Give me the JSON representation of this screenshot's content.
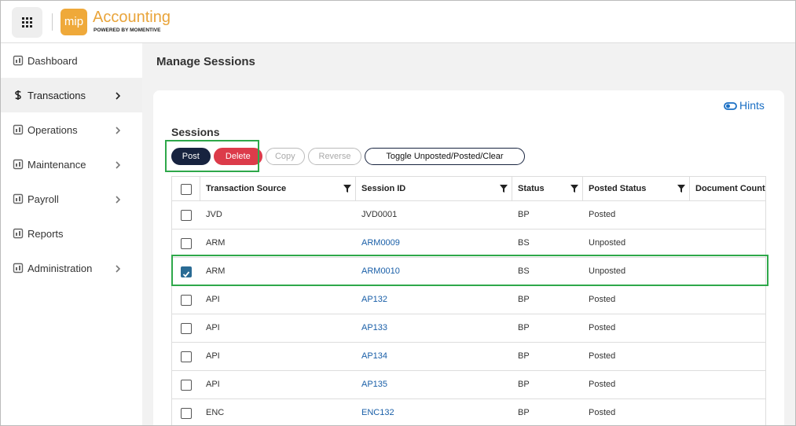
{
  "header": {
    "logo": "mip",
    "product": "Accounting",
    "tagline": "POWERED BY MOMENTIVE"
  },
  "sidebar": {
    "items": [
      {
        "label": "Dashboard",
        "submenu": false,
        "selected": false
      },
      {
        "label": "Transactions",
        "submenu": true,
        "selected": true
      },
      {
        "label": "Operations",
        "submenu": true,
        "selected": false
      },
      {
        "label": "Maintenance",
        "submenu": true,
        "selected": false
      },
      {
        "label": "Payroll",
        "submenu": true,
        "selected": false
      },
      {
        "label": "Reports",
        "submenu": false,
        "selected": false
      },
      {
        "label": "Administration",
        "submenu": true,
        "selected": false
      }
    ]
  },
  "page": {
    "title": "Manage Sessions",
    "hints": "Hints",
    "section": "Sessions",
    "buttons": [
      {
        "label": "Post",
        "style": "dark"
      },
      {
        "label": "Delete",
        "style": "danger"
      },
      {
        "label": "Copy",
        "style": "disabled"
      },
      {
        "label": "Reverse",
        "style": "disabled"
      },
      {
        "label": "Toggle Unposted/Posted/Clear",
        "style": "outline"
      }
    ]
  },
  "table": {
    "columns": [
      "Transaction Source",
      "Session ID",
      "Status",
      "Posted Status",
      "Document Count"
    ],
    "rows": [
      {
        "source": "JVD",
        "session_id": "JVD0001",
        "session_link": false,
        "status": "BP",
        "posted_status": "Posted",
        "checked": false
      },
      {
        "source": "ARM",
        "session_id": "ARM0009",
        "session_link": true,
        "status": "BS",
        "posted_status": "Unposted",
        "checked": false
      },
      {
        "source": "ARM",
        "session_id": "ARM0010",
        "session_link": true,
        "status": "BS",
        "posted_status": "Unposted",
        "checked": true
      },
      {
        "source": "API",
        "session_id": "AP132",
        "session_link": true,
        "status": "BP",
        "posted_status": "Posted",
        "checked": false
      },
      {
        "source": "API",
        "session_id": "AP133",
        "session_link": true,
        "status": "BP",
        "posted_status": "Posted",
        "checked": false
      },
      {
        "source": "API",
        "session_id": "AP134",
        "session_link": true,
        "status": "BP",
        "posted_status": "Posted",
        "checked": false
      },
      {
        "source": "API",
        "session_id": "AP135",
        "session_link": true,
        "status": "BP",
        "posted_status": "Posted",
        "checked": false
      },
      {
        "source": "ENC",
        "session_id": "ENC132",
        "session_link": true,
        "status": "BP",
        "posted_status": "Posted",
        "checked": false
      }
    ]
  }
}
